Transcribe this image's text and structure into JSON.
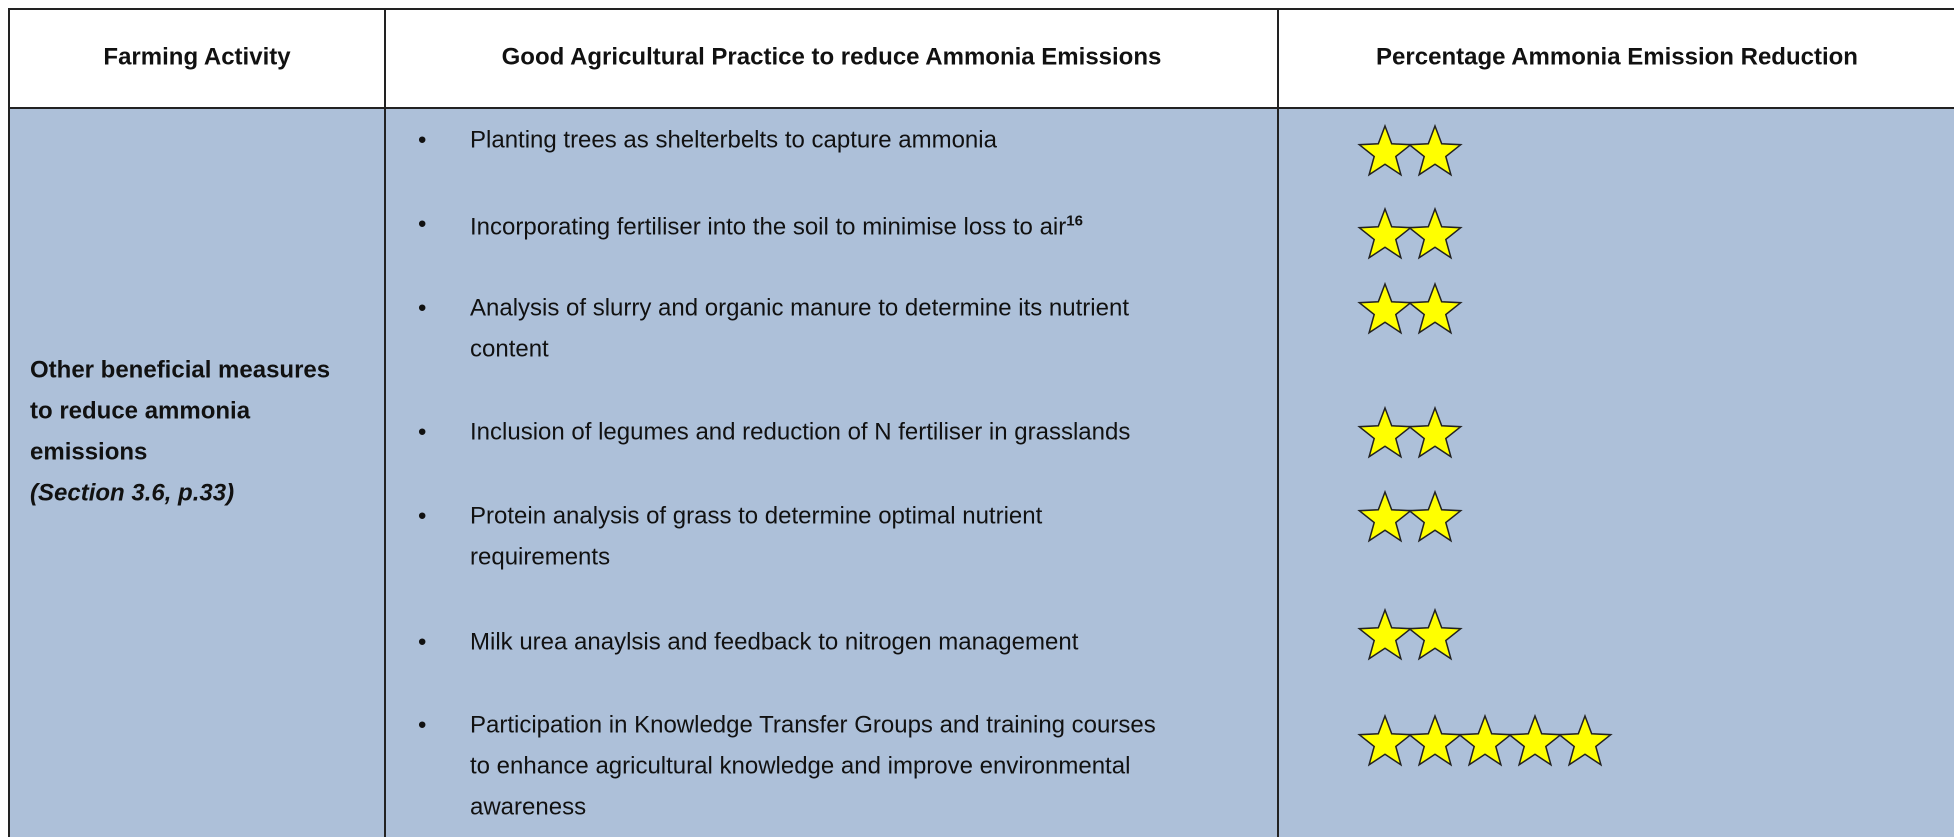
{
  "table": {
    "headers": [
      "Farming Activity",
      "Good Agricultural Practice to reduce Ammonia Emissions",
      "Percentage Ammonia Emission Reduction"
    ],
    "activity": {
      "lines": [
        "Other beneficial measures",
        "to reduce ammonia",
        "emissions"
      ],
      "reference": "(Section 3.6, p.33)"
    },
    "practices": [
      {
        "lines": [
          "Planting trees as shelterbelts to capture ammonia"
        ],
        "stars": 2
      },
      {
        "lines": [
          "Incorporating fertiliser into the soil to minimise loss to air"
        ],
        "superscript": "16",
        "stars": 2
      },
      {
        "lines": [
          "Analysis of slurry and organic manure to determine its nutrient",
          "content"
        ],
        "stars": 2
      },
      {
        "lines": [
          "Inclusion of legumes and reduction of N fertiliser in grasslands"
        ],
        "stars": 2
      },
      {
        "lines": [
          "Protein analysis of grass to determine optimal nutrient",
          "requirements"
        ],
        "stars": 2
      },
      {
        "lines": [
          "Milk urea anaylsis and feedback to nitrogen management"
        ],
        "stars": 2
      },
      {
        "lines": [
          "Participation in Knowledge Transfer Groups and training courses",
          "to enhance agricultural knowledge and improve environmental",
          "awareness"
        ],
        "stars": 5
      }
    ]
  }
}
